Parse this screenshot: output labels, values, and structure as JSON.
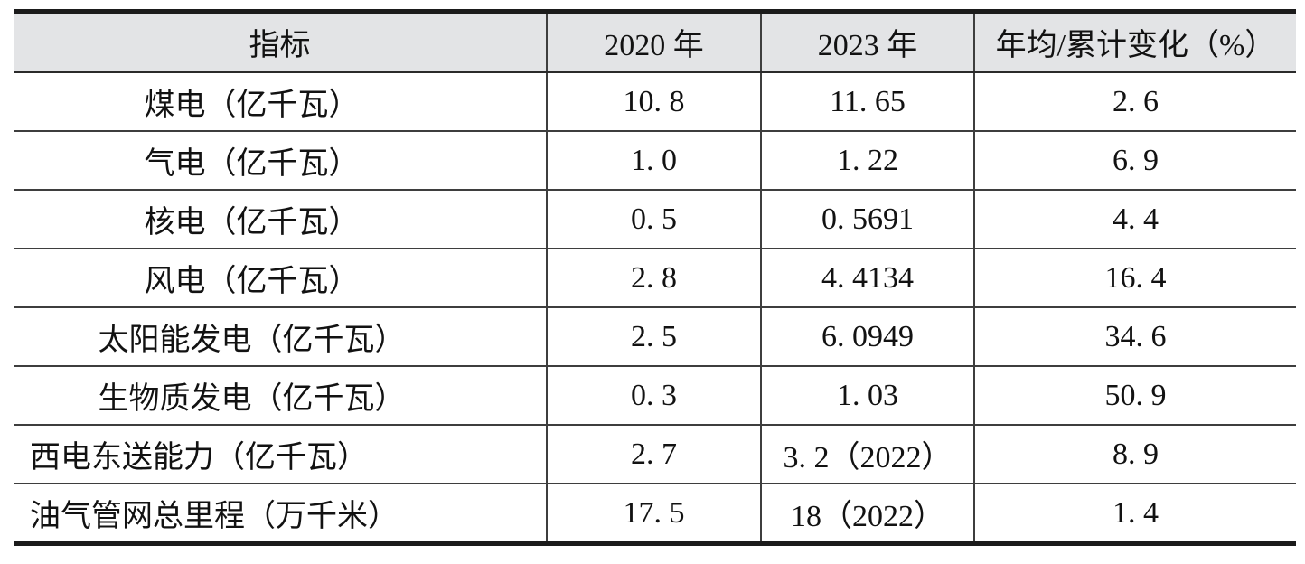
{
  "colors": {
    "header_background": "#e3e4e6",
    "rule_thick": "#1b1b1b",
    "rule_thin": "#3e3e3e",
    "text": "#121212",
    "page_background": "#ffffff"
  },
  "table": {
    "header": {
      "indicator": "指标",
      "y2020": "2020 年",
      "y2023": "2023 年",
      "change": "年均/累计变化（%）"
    },
    "rows": [
      {
        "indicator": "煤电（亿千瓦）",
        "v2020": "10. 8",
        "v2023": "11. 65",
        "change": "2. 6"
      },
      {
        "indicator": "气电（亿千瓦）",
        "v2020": "1. 0",
        "v2023": "1. 22",
        "change": "6. 9"
      },
      {
        "indicator": "核电（亿千瓦）",
        "v2020": "0. 5",
        "v2023": "0. 5691",
        "change": "4. 4"
      },
      {
        "indicator": "风电（亿千瓦）",
        "v2020": "2. 8",
        "v2023": "4. 4134",
        "change": "16. 4"
      },
      {
        "indicator": "太阳能发电（亿千瓦）",
        "v2020": "2. 5",
        "v2023": "6. 0949",
        "change": "34. 6"
      },
      {
        "indicator": "生物质发电（亿千瓦）",
        "v2020": "0. 3",
        "v2023": "1. 03",
        "change": "50. 9"
      },
      {
        "indicator": "西电东送能力（亿千瓦）",
        "v2020": "2. 7",
        "v2023": "3. 2（2022）",
        "change": "8. 9"
      },
      {
        "indicator": "油气管网总里程（万千米）",
        "v2020": "17. 5",
        "v2023": "18（2022）",
        "change": "1. 4"
      }
    ]
  }
}
